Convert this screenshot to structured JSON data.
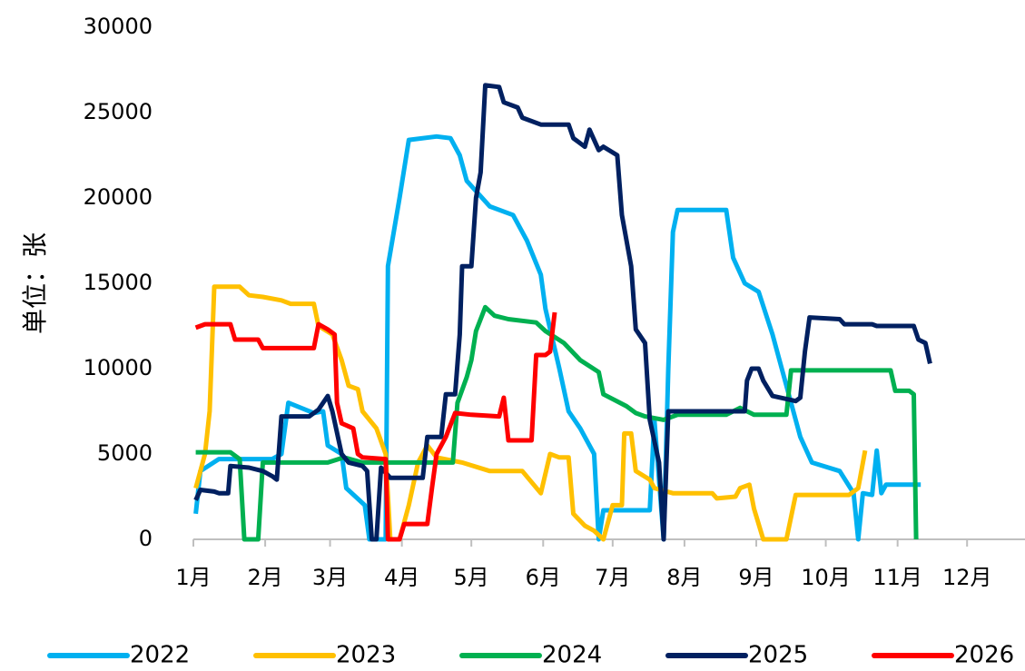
{
  "chart_data": {
    "type": "line",
    "y_label": "单位：张",
    "xlim": [
      1,
      360
    ],
    "xticks": [
      {
        "value": 1,
        "label": "1月"
      },
      {
        "value": 32,
        "label": "2月"
      },
      {
        "value": 60,
        "label": "3月"
      },
      {
        "value": 91,
        "label": "4月"
      },
      {
        "value": 121,
        "label": "5月"
      },
      {
        "value": 152,
        "label": "6月"
      },
      {
        "value": 182,
        "label": "7月"
      },
      {
        "value": 213,
        "label": "8月"
      },
      {
        "value": 244,
        "label": "9月"
      },
      {
        "value": 274,
        "label": "10月"
      },
      {
        "value": 305,
        "label": "11月"
      },
      {
        "value": 335,
        "label": "12月"
      }
    ],
    "ylim": [
      0,
      30000
    ],
    "yticks": [
      0,
      5000,
      10000,
      15000,
      20000,
      25000,
      30000
    ],
    "legend": "bottom",
    "series": [
      {
        "name": "2022",
        "color": "#00b0f0",
        "x": [
          2,
          4,
          12,
          35,
          39,
          42,
          53,
          57,
          59,
          65,
          67,
          75,
          77,
          84,
          85,
          90,
          94,
          106,
          112,
          116,
          119,
          129,
          139,
          145,
          151,
          153,
          159,
          163,
          168,
          174,
          176,
          178,
          198,
          200,
          204,
          206,
          208,
          210,
          231,
          234,
          239,
          245,
          251,
          255,
          261,
          263,
          268,
          280,
          286,
          288,
          290,
          294,
          296,
          298,
          300,
          315
        ],
        "values": [
          1500,
          4000,
          4700,
          4700,
          5000,
          8000,
          7400,
          7500,
          5500,
          5000,
          3000,
          2000,
          0,
          0,
          16000,
          20000,
          23400,
          23600,
          23500,
          22500,
          21000,
          19500,
          19000,
          17500,
          15500,
          13500,
          10000,
          7500,
          6500,
          5000,
          0,
          1700,
          1700,
          7000,
          0,
          10000,
          18000,
          19300,
          19300,
          16500,
          15000,
          14500,
          12000,
          10000,
          7000,
          6000,
          4500,
          4000,
          2700,
          0,
          2700,
          2600,
          5200,
          2700,
          3200,
          3200
        ]
      },
      {
        "name": "2023",
        "color": "#ffc000",
        "x": [
          2,
          6,
          8,
          10,
          21,
          25,
          31,
          39,
          43,
          53,
          55,
          61,
          65,
          68,
          72,
          74,
          80,
          84,
          86,
          90,
          94,
          98,
          102,
          106,
          117,
          129,
          143,
          151,
          155,
          159,
          163,
          165,
          170,
          174,
          178,
          182,
          186,
          187,
          190,
          192,
          198,
          200,
          208,
          225,
          227,
          235,
          237,
          241,
          243,
          247,
          257,
          261,
          284,
          288,
          291
        ],
        "values": [
          3000,
          5000,
          7500,
          14800,
          14800,
          14300,
          14200,
          14000,
          13800,
          13800,
          12500,
          12000,
          10500,
          9000,
          8800,
          7500,
          6500,
          5000,
          0,
          0,
          2000,
          4500,
          5500,
          4800,
          4500,
          4000,
          4000,
          2700,
          5000,
          4800,
          4800,
          1500,
          800,
          500,
          0,
          2000,
          2000,
          6200,
          6200,
          4000,
          3500,
          3000,
          2700,
          2700,
          2400,
          2500,
          3000,
          3200,
          1800,
          0,
          0,
          2600,
          2600,
          3000,
          5200
        ]
      },
      {
        "name": "2024",
        "color": "#00b050",
        "x": [
          2,
          17,
          21,
          23,
          29,
          31,
          35,
          59,
          66,
          74,
          113,
          115,
          119,
          121,
          123,
          127,
          131,
          137,
          149,
          153,
          161,
          168,
          176,
          178,
          188,
          192,
          196,
          204,
          210,
          231,
          237,
          243,
          257,
          259,
          302,
          304,
          310,
          312,
          313
        ],
        "values": [
          5100,
          5100,
          4700,
          0,
          0,
          4500,
          4500,
          4500,
          4800,
          4500,
          4500,
          8000,
          9500,
          10500,
          12200,
          13600,
          13100,
          12900,
          12700,
          12200,
          11500,
          10500,
          9800,
          8500,
          7800,
          7400,
          7200,
          7000,
          7300,
          7300,
          7700,
          7300,
          7300,
          9900,
          9900,
          8700,
          8700,
          8500,
          0
        ]
      },
      {
        "name": "2025",
        "color": "#002060",
        "x": [
          2,
          4,
          10,
          12,
          16,
          17,
          25,
          31,
          35,
          37,
          39,
          51,
          55,
          59,
          61,
          65,
          68,
          74,
          76,
          78,
          80,
          82,
          86,
          100,
          102,
          108,
          110,
          114,
          116,
          117,
          121,
          123,
          125,
          127,
          133,
          135,
          141,
          143,
          151,
          163,
          165,
          170,
          172,
          176,
          178,
          184,
          186,
          190,
          192,
          196,
          198,
          202,
          204,
          206,
          239,
          240,
          242,
          245,
          247,
          251,
          261,
          263,
          265,
          267,
          280,
          282,
          294,
          296,
          312,
          314,
          317,
          319
        ],
        "values": [
          2300,
          2900,
          2800,
          2700,
          2700,
          4300,
          4200,
          4000,
          3700,
          3500,
          7200,
          7200,
          7600,
          8400,
          7500,
          5000,
          4500,
          4300,
          4000,
          0,
          0,
          4200,
          3600,
          3600,
          6000,
          6000,
          8500,
          8500,
          12000,
          16000,
          16000,
          20000,
          21500,
          26600,
          26500,
          25600,
          25300,
          24700,
          24300,
          24300,
          23500,
          23000,
          24000,
          22800,
          23000,
          22500,
          19000,
          16000,
          12300,
          11500,
          7000,
          4500,
          0,
          7500,
          7500,
          9300,
          10000,
          10000,
          9300,
          8400,
          8100,
          8300,
          11000,
          13000,
          12900,
          12600,
          12600,
          12500,
          12500,
          11700,
          11500,
          10300
        ]
      },
      {
        "name": "2026",
        "color": "#ff0000",
        "x": [
          2,
          6,
          17,
          19,
          29,
          31,
          53,
          55,
          59,
          62,
          63,
          65,
          70,
          72,
          74,
          84,
          85,
          90,
          92,
          102,
          104,
          106,
          110,
          114,
          121,
          133,
          135,
          137,
          147,
          149,
          153,
          155,
          157
        ],
        "values": [
          12400,
          12600,
          12600,
          11700,
          11700,
          11200,
          11200,
          12600,
          12300,
          12000,
          8000,
          6800,
          6500,
          5000,
          4800,
          4700,
          0,
          0,
          900,
          900,
          3000,
          5000,
          6000,
          7400,
          7300,
          7200,
          8300,
          5800,
          5800,
          10800,
          10800,
          11000,
          13300
        ]
      }
    ]
  }
}
